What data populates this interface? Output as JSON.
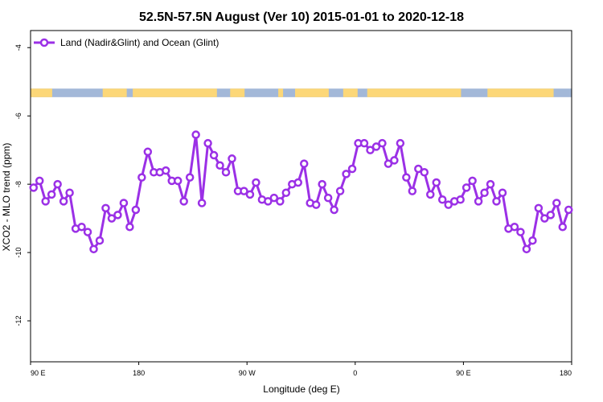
{
  "chart_data": {
    "type": "line",
    "title": "52.5N-57.5N August (Ver 10)   2015-01-01 to 2020-12-18",
    "xlabel": "Longitude (deg E)",
    "ylabel": "XCO2 - MLO trend (ppm)",
    "xlim": [
      90,
      540
    ],
    "ylim": [
      -13.2,
      -3.5
    ],
    "x_ticks": [
      {
        "value": 90,
        "label": "90 E"
      },
      {
        "value": 180,
        "label": "180"
      },
      {
        "value": 270,
        "label": "90 W"
      },
      {
        "value": 360,
        "label": "0"
      },
      {
        "value": 450,
        "label": "90 E"
      },
      {
        "value": 540,
        "label": "180"
      }
    ],
    "y_ticks": [
      {
        "value": -4,
        "label": "-4"
      },
      {
        "value": -6,
        "label": "-6"
      },
      {
        "value": -8,
        "label": "-8"
      },
      {
        "value": -10,
        "label": "-10"
      },
      {
        "value": -12,
        "label": "-12"
      }
    ],
    "legend": {
      "position": "top-left"
    },
    "land_ocean_strip": {
      "y_range": [
        -5.45,
        -5.2
      ],
      "ocean_color": "#a3b8d8",
      "land_color": "#fcd778"
    },
    "series": [
      {
        "name": "Land (Nadir&Glint) and Ocean (Glint)",
        "color": "#9b30e6",
        "x": [
          92.5,
          97.5,
          102.5,
          107.5,
          112.5,
          117.5,
          122.5,
          127.5,
          132.5,
          137.5,
          142.5,
          147.5,
          152.5,
          157.5,
          162.5,
          167.5,
          172.5,
          177.5,
          182.5,
          187.5,
          192.5,
          197.5,
          202.5,
          207.5,
          212.5,
          217.5,
          222.5,
          227.5,
          232.5,
          237.5,
          242.5,
          247.5,
          252.5,
          257.5,
          262.5,
          267.5,
          272.5,
          277.5,
          282.5,
          287.5,
          292.5,
          297.5,
          302.5,
          307.5,
          312.5,
          317.5,
          322.5,
          327.5,
          332.5,
          337.5,
          342.5,
          347.5,
          352.5,
          357.5,
          362.5,
          367.5,
          372.5,
          377.5,
          382.5,
          387.5,
          392.5,
          397.5,
          402.5,
          407.5,
          412.5,
          417.5,
          422.5,
          427.5,
          432.5,
          437.5,
          442.5,
          447.5,
          452.5,
          457.5,
          462.5,
          467.5,
          472.5,
          477.5,
          482.5,
          487.5,
          492.5,
          497.5,
          502.5,
          507.5,
          512.5,
          517.5,
          522.5,
          527.5,
          532.5,
          537.5
        ],
        "values": [
          -8.1,
          -7.9,
          -8.5,
          -8.3,
          -8.0,
          -8.5,
          -8.25,
          -9.3,
          -9.25,
          -9.4,
          -9.9,
          -9.65,
          -8.7,
          -9.0,
          -8.9,
          -8.55,
          -9.25,
          -8.75,
          -7.8,
          -7.05,
          -7.65,
          -7.65,
          -7.6,
          -7.9,
          -7.9,
          -8.5,
          -7.8,
          -6.55,
          -8.55,
          -6.8,
          -7.15,
          -7.45,
          -7.65,
          -7.25,
          -8.2,
          -8.2,
          -8.3,
          -7.95,
          -8.45,
          -8.5,
          -8.4,
          -8.5,
          -8.25,
          -8.0,
          -7.95,
          -7.4,
          -8.55,
          -8.6,
          -8.0,
          -8.4,
          -8.75,
          -8.2,
          -7.7,
          -7.55,
          -6.8,
          -6.8,
          -7.0,
          -6.9,
          -6.8,
          -7.4,
          -7.3,
          -6.8,
          -7.8,
          -8.2,
          -7.55,
          -7.65,
          -8.3,
          -7.95,
          -8.45,
          -8.6,
          -8.5,
          -8.45,
          -8.1,
          -7.9,
          -8.5,
          -8.25,
          -8.0,
          -8.5,
          -8.25,
          -9.3,
          -9.25,
          -9.4,
          -9.9,
          -9.65,
          -8.7,
          -9.0,
          -8.9,
          -8.55,
          -9.25,
          -8.75
        ]
      }
    ]
  }
}
